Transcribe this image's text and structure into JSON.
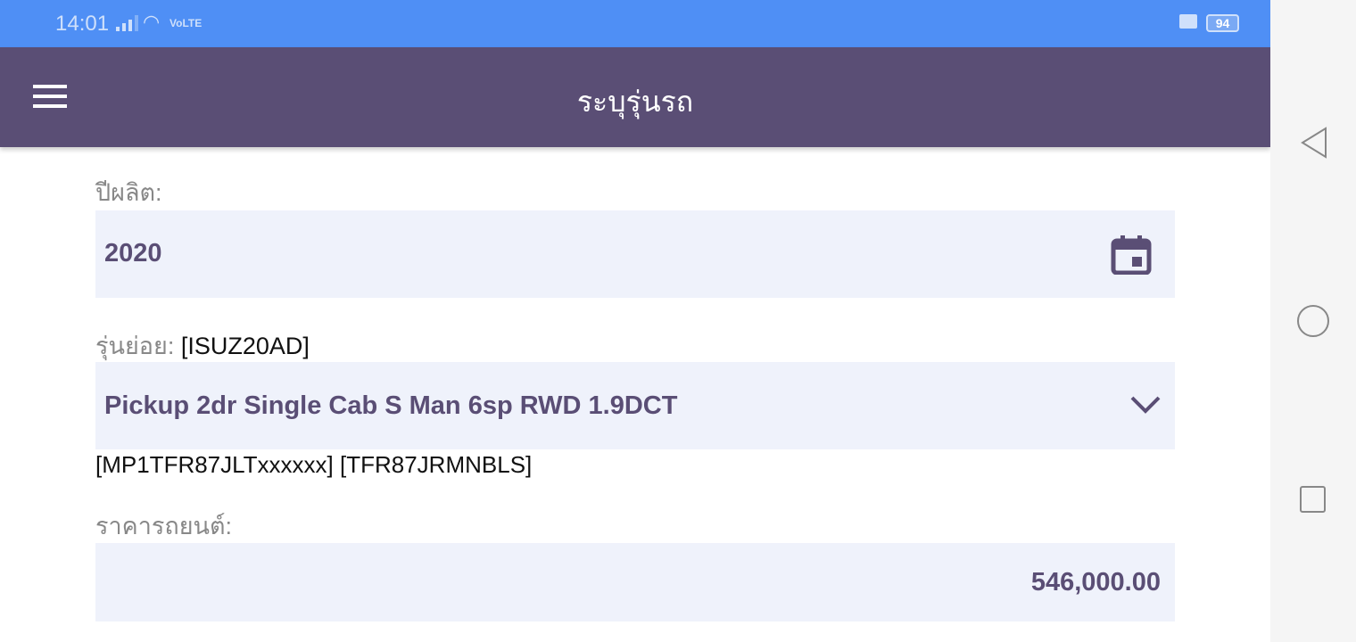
{
  "status_bar": {
    "time": "14:01",
    "network": "VoLTE",
    "battery": "94"
  },
  "app_bar": {
    "title": "ระบุรุ่นรถ"
  },
  "form": {
    "year": {
      "label": "ปีผลิต:",
      "value": "2020"
    },
    "submodel": {
      "label": "รุ่นย่อย:",
      "code": "[ISUZ20AD]",
      "value": "Pickup 2dr Single Cab S Man 6sp RWD 1.9DCT",
      "extra": "[MP1TFR87JLTxxxxxx] [TFR87JRMNBLS]"
    },
    "price": {
      "label": "ราคารถยนต์:",
      "value": "546,000.00"
    }
  },
  "colors": {
    "status": "#4f8ff5",
    "appbar": "#5a4e75",
    "field": "#eff2fb"
  }
}
